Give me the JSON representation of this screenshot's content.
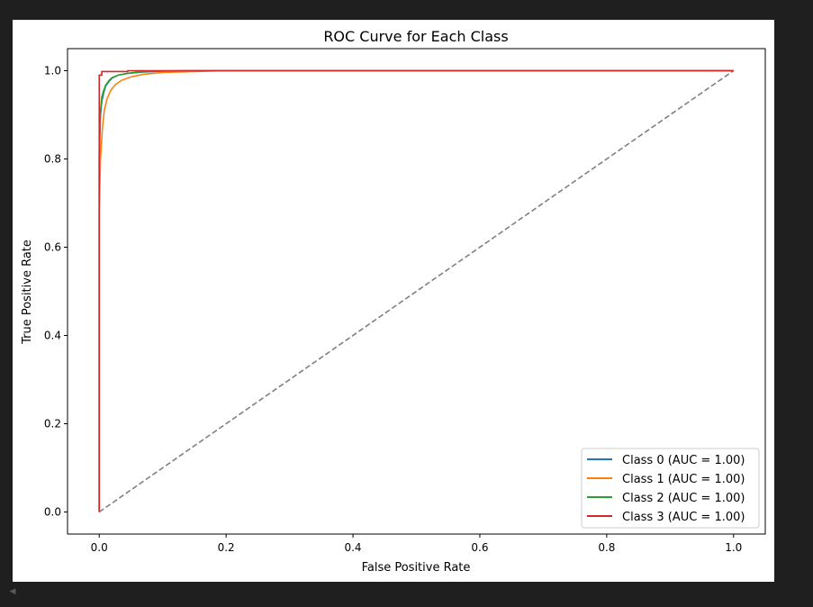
{
  "chart_data": {
    "type": "line",
    "title": "ROC Curve for Each Class",
    "xlabel": "False Positive Rate",
    "ylabel": "True Positive Rate",
    "xlim": [
      -0.05,
      1.05
    ],
    "ylim": [
      -0.05,
      1.05
    ],
    "xticks": [
      0.0,
      0.2,
      0.4,
      0.6,
      0.8,
      1.0
    ],
    "yticks": [
      0.0,
      0.2,
      0.4,
      0.6,
      0.8,
      1.0
    ],
    "xtick_labels": [
      "0.0",
      "0.2",
      "0.4",
      "0.6",
      "0.8",
      "1.0"
    ],
    "ytick_labels": [
      "0.0",
      "0.2",
      "0.4",
      "0.6",
      "0.8",
      "1.0"
    ],
    "grid": false,
    "legend_position": "lower-right",
    "series": [
      {
        "name": "Class 0 (AUC = 1.00)",
        "color": "#1f77b4",
        "x": [
          0.0,
          0.0,
          0.002,
          0.004,
          0.007,
          0.01,
          0.015,
          0.02,
          0.03,
          0.045,
          0.07,
          0.1,
          0.15,
          1.0
        ],
        "y": [
          0.0,
          0.8,
          0.9,
          0.93,
          0.95,
          0.965,
          0.975,
          0.983,
          0.99,
          0.994,
          0.997,
          0.999,
          1.0,
          1.0
        ]
      },
      {
        "name": "Class 1 (AUC = 1.00)",
        "color": "#ff7f0e",
        "x": [
          0.0,
          0.0,
          0.002,
          0.005,
          0.008,
          0.012,
          0.018,
          0.025,
          0.035,
          0.05,
          0.07,
          0.1,
          0.15,
          0.2,
          1.0
        ],
        "y": [
          0.0,
          0.68,
          0.8,
          0.87,
          0.91,
          0.935,
          0.955,
          0.968,
          0.978,
          0.986,
          0.992,
          0.996,
          0.998,
          1.0,
          1.0
        ]
      },
      {
        "name": "Class 2 (AUC = 1.00)",
        "color": "#2ca02c",
        "x": [
          0.0,
          0.0,
          0.002,
          0.004,
          0.007,
          0.01,
          0.015,
          0.02,
          0.03,
          0.045,
          0.06,
          0.09,
          0.13,
          1.0
        ],
        "y": [
          0.0,
          0.82,
          0.91,
          0.94,
          0.955,
          0.967,
          0.977,
          0.984,
          0.99,
          0.994,
          0.997,
          0.999,
          1.0,
          1.0
        ]
      },
      {
        "name": "Class 3 (AUC = 1.00)",
        "color": "#d62728",
        "x": [
          0.0,
          0.0,
          0.002,
          0.004,
          0.004,
          0.045,
          0.045,
          1.0
        ],
        "y": [
          0.0,
          0.99,
          0.99,
          0.99,
          0.998,
          0.998,
          1.0,
          1.0
        ]
      }
    ],
    "reference_line": {
      "color": "#808080",
      "style": "dashed",
      "x": [
        0.0,
        1.0
      ],
      "y": [
        0.0,
        1.0
      ]
    }
  }
}
